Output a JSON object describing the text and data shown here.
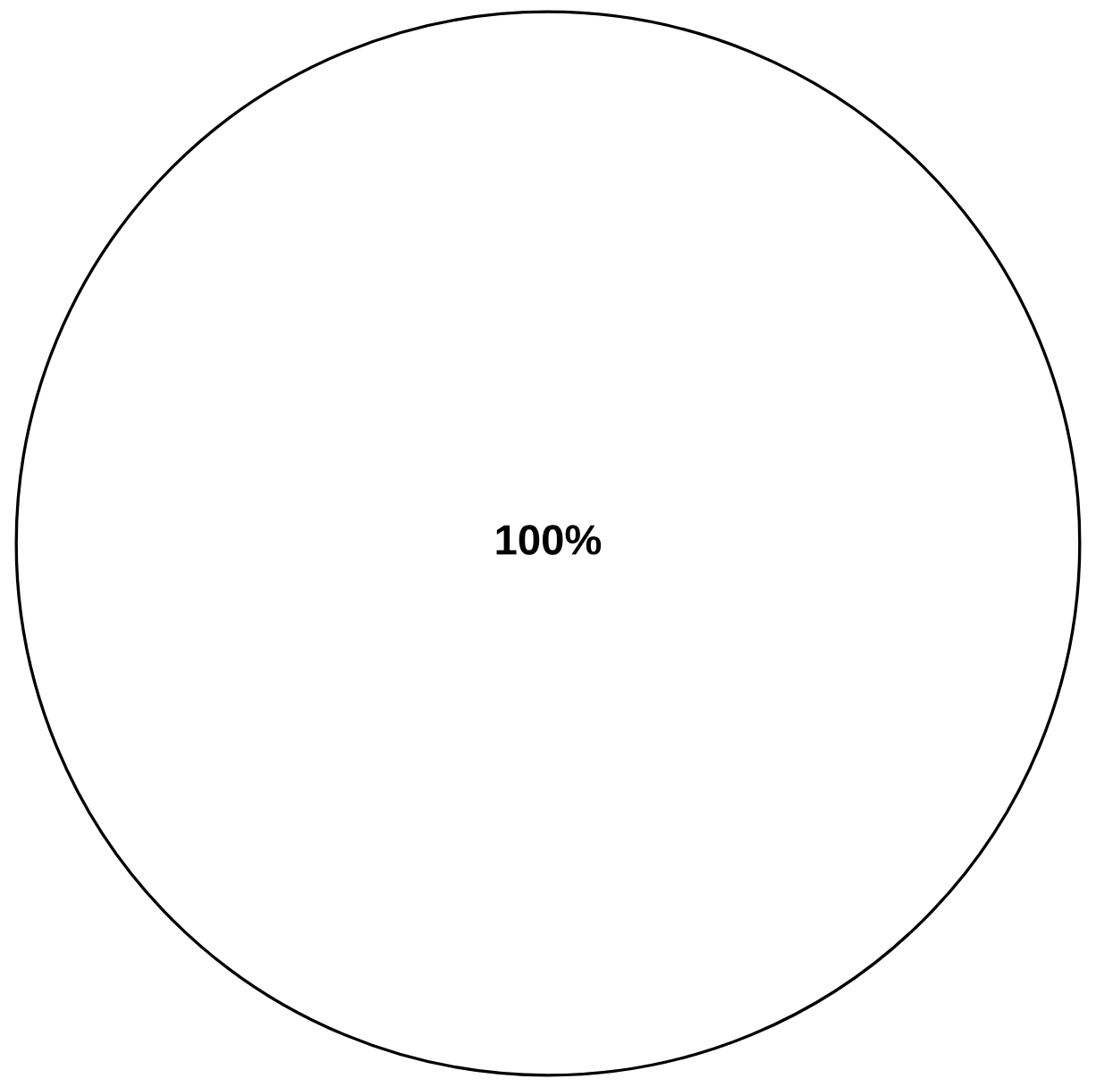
{
  "chart_data": {
    "type": "pie",
    "categories": [
      null
    ],
    "values": [
      100
    ],
    "colors": [
      "#ffffff"
    ],
    "value_labels": [
      "100%"
    ],
    "legend": false
  }
}
